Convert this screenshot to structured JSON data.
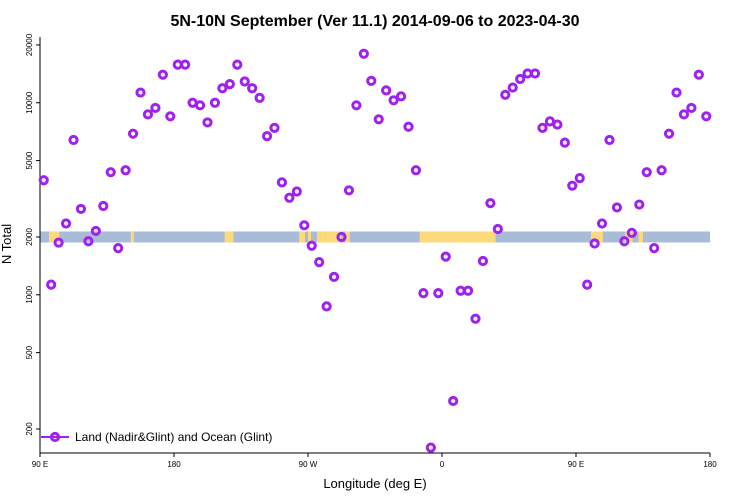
{
  "chart_data": {
    "type": "scatter",
    "title": "5N-10N September (Ver 11.1)   2014-09-06 to 2023-04-30",
    "xlabel": "Longitude (deg E)",
    "ylabel": "N Total",
    "xlim": [
      90,
      540
    ],
    "ylim": [
      150,
      22000
    ],
    "yscale": "log",
    "x_ticks": [
      {
        "value": 90,
        "label": "90 E"
      },
      {
        "value": 180,
        "label": "180"
      },
      {
        "value": 270,
        "label": "90 W"
      },
      {
        "value": 360,
        "label": "0"
      },
      {
        "value": 450,
        "label": "90 E"
      },
      {
        "value": 540,
        "label": "180"
      }
    ],
    "y_ticks": [
      {
        "value": 200,
        "label": "200"
      },
      {
        "value": 500,
        "label": "500"
      },
      {
        "value": 1000,
        "label": "1000"
      },
      {
        "value": 2000,
        "label": "2000"
      },
      {
        "value": 5000,
        "label": "5000"
      },
      {
        "value": 10000,
        "label": "10000"
      },
      {
        "value": 20000,
        "label": "20000"
      }
    ],
    "grid": false,
    "legend": "bottom-left",
    "land_mask_strip": {
      "y_center": 2000,
      "ocean_color": "#a8bcd8",
      "land_color": "#fcd97a",
      "land_segments": [
        [
          96,
          103
        ],
        [
          151,
          153
        ],
        [
          214,
          220
        ],
        [
          264,
          268
        ],
        [
          270,
          272
        ],
        [
          276,
          282
        ],
        [
          282,
          292
        ],
        [
          295,
          298
        ],
        [
          345,
          396
        ],
        [
          460,
          468
        ],
        [
          483,
          488
        ],
        [
          492,
          495
        ]
      ]
    },
    "series": [
      {
        "name": "Land (Nadir&Glint) and Ocean (Glint)",
        "color": "#a020f0",
        "points": [
          [
            92.5,
            3950
          ],
          [
            97.5,
            1130
          ],
          [
            102.5,
            1870
          ],
          [
            107.5,
            2350
          ],
          [
            112.5,
            6400
          ],
          [
            117.5,
            2800
          ],
          [
            122.5,
            1900
          ],
          [
            127.5,
            2150
          ],
          [
            132.5,
            2900
          ],
          [
            137.5,
            4350
          ],
          [
            142.5,
            1750
          ],
          [
            147.5,
            4450
          ],
          [
            152.5,
            6900
          ],
          [
            157.5,
            11300
          ],
          [
            162.5,
            8700
          ],
          [
            167.5,
            9400
          ],
          [
            172.5,
            14000
          ],
          [
            177.5,
            8500
          ],
          [
            182.5,
            15800
          ],
          [
            187.5,
            15800
          ],
          [
            192.5,
            10000
          ],
          [
            197.5,
            9700
          ],
          [
            202.5,
            7900
          ],
          [
            207.5,
            10000
          ],
          [
            212.5,
            11900
          ],
          [
            217.5,
            12500
          ],
          [
            222.5,
            15800
          ],
          [
            227.5,
            12900
          ],
          [
            232.5,
            11900
          ],
          [
            237.5,
            10600
          ],
          [
            242.5,
            6700
          ],
          [
            247.5,
            7400
          ],
          [
            252.5,
            3850
          ],
          [
            257.5,
            3200
          ],
          [
            262.5,
            3450
          ],
          [
            267.5,
            2300
          ],
          [
            272.5,
            1800
          ],
          [
            277.5,
            1480
          ],
          [
            282.5,
            870
          ],
          [
            287.5,
            1240
          ],
          [
            292.5,
            2000
          ],
          [
            297.5,
            3500
          ],
          [
            302.5,
            9700
          ],
          [
            307.5,
            18000
          ],
          [
            312.5,
            13000
          ],
          [
            317.5,
            8200
          ],
          [
            322.5,
            11600
          ],
          [
            327.5,
            10300
          ],
          [
            332.5,
            10800
          ],
          [
            337.5,
            7500
          ],
          [
            342.5,
            4450
          ],
          [
            347.5,
            1020
          ],
          [
            352.5,
            160
          ],
          [
            357.5,
            1020
          ],
          [
            362.5,
            1580
          ],
          [
            367.5,
            280
          ],
          [
            372.5,
            1050
          ],
          [
            377.5,
            1050
          ],
          [
            382.5,
            750
          ],
          [
            387.5,
            1500
          ],
          [
            392.5,
            3000
          ],
          [
            397.5,
            2200
          ],
          [
            402.5,
            11000
          ],
          [
            407.5,
            12000
          ],
          [
            412.5,
            13300
          ],
          [
            417.5,
            14200
          ],
          [
            422.5,
            14200
          ],
          [
            427.5,
            7400
          ],
          [
            432.5,
            8000
          ],
          [
            437.5,
            7700
          ],
          [
            442.5,
            6200
          ],
          [
            447.5,
            3700
          ],
          [
            452.5,
            4050
          ],
          [
            457.5,
            1130
          ],
          [
            462.5,
            1850
          ],
          [
            467.5,
            2350
          ],
          [
            472.5,
            6400
          ],
          [
            477.5,
            2850
          ],
          [
            482.5,
            1900
          ],
          [
            487.5,
            2100
          ],
          [
            492.5,
            2950
          ],
          [
            497.5,
            4350
          ],
          [
            502.5,
            1750
          ],
          [
            507.5,
            4450
          ],
          [
            512.5,
            6900
          ],
          [
            517.5,
            11300
          ],
          [
            522.5,
            8700
          ],
          [
            527.5,
            9400
          ],
          [
            532.5,
            14000
          ],
          [
            537.5,
            8500
          ]
        ]
      }
    ]
  }
}
